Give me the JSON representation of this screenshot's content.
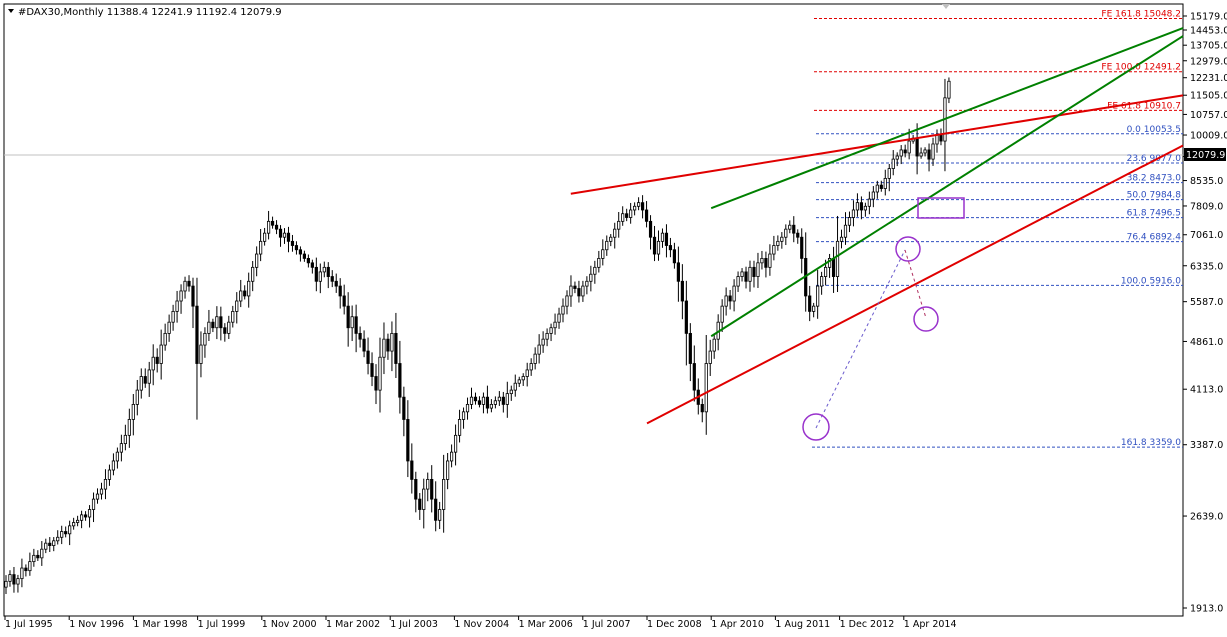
{
  "header": {
    "symbol_info": "#DAX30,Monthly  11388.4 12241.9 11192.4 12079.9"
  },
  "current_price_label": "12079.9",
  "colors": {
    "candle": "#000000",
    "green_line": "#008000",
    "red_line": "#e00000",
    "fib_blue": "#3050c0",
    "fe_red": "#e00000",
    "marker_purple": "#9932cc",
    "axis": "#000000"
  },
  "chart_data": {
    "type": "candlestick",
    "symbol": "#DAX30",
    "timeframe": "Monthly",
    "last_bar": {
      "open": 11388.4,
      "high": 12241.9,
      "low": 11192.4,
      "close": 12079.9
    },
    "y_ticks": [
      "15179.0",
      "14453.0",
      "13705.0",
      "12979.0",
      "12231.0",
      "11505.0",
      "10757.0",
      "10009.0",
      "9283.0",
      "8535.0",
      "7809.0",
      "7061.0",
      "6335.0",
      "5587.0",
      "4861.0",
      "4113.0",
      "3387.0",
      "2639.0",
      "1913.0"
    ],
    "x_ticks": [
      "1 Jul 1995",
      "1 Nov 1996",
      "1 Mar 1998",
      "1 Jul 1999",
      "1 Nov 2000",
      "1 Mar 2002",
      "1 Jul 2003",
      "1 Nov 2004",
      "1 Mar 2006",
      "1 Jul 2007",
      "1 Dec 2008",
      "1 Apr 2010",
      "1 Aug 2011",
      "1 Dec 2012",
      "1 Apr 2014"
    ],
    "ylim": [
      1913,
      15179
    ],
    "fib_retracement": [
      {
        "label": "0.0 10053.5",
        "value": 10053.5
      },
      {
        "label": "23.6 9077.0",
        "value": 9077.0
      },
      {
        "label": "38.2 8473.0",
        "value": 8473.0
      },
      {
        "label": "50.0 7984.8",
        "value": 7984.8
      },
      {
        "label": "61.8 7496.5",
        "value": 7496.5
      },
      {
        "label": "76.4 6892.4",
        "value": 6892.4
      },
      {
        "label": "100.0 5916.0",
        "value": 5916.0
      },
      {
        "label": "161.8 3359.0",
        "value": 3359.0
      }
    ],
    "fib_expansion": [
      {
        "label": "FE 161.8 15048.2",
        "value": 15048.2
      },
      {
        "label": "FE 100.0 12491.2",
        "value": 12491.2
      },
      {
        "label": "FE 61.8 10910.7",
        "value": 10910.7
      }
    ],
    "monthly_closes": [
      2100,
      2150,
      2080,
      2120,
      2200,
      2180,
      2250,
      2300,
      2280,
      2350,
      2400,
      2380,
      2420,
      2450,
      2500,
      2480,
      2550,
      2580,
      2600,
      2650,
      2630,
      2700,
      2800,
      2850,
      2900,
      3000,
      3100,
      3200,
      3300,
      3400,
      3500,
      3700,
      3900,
      4100,
      4300,
      4200,
      4400,
      4600,
      4500,
      4800,
      5000,
      5200,
      5400,
      5600,
      5800,
      6000,
      5900,
      5500,
      4500,
      4800,
      5000,
      5200,
      5100,
      5300,
      5100,
      5000,
      5200,
      5400,
      5600,
      5800,
      5700,
      6000,
      6300,
      6600,
      6900,
      7100,
      7400,
      7300,
      7200,
      7000,
      7100,
      6900,
      6800,
      6700,
      6600,
      6500,
      6400,
      6300,
      6000,
      6200,
      6300,
      6100,
      6000,
      5900,
      5700,
      5500,
      5100,
      5300,
      5000,
      4900,
      4700,
      4500,
      4300,
      4100,
      4600,
      4900,
      4700,
      5000,
      4500,
      4000,
      3700,
      3200,
      3000,
      2800,
      2700,
      2900,
      3000,
      2800,
      2600,
      2700,
      3000,
      3200,
      3300,
      3500,
      3700,
      3800,
      3900,
      4000,
      3950,
      3900,
      4000,
      3850,
      3900,
      3950,
      4000,
      3900,
      4050,
      4100,
      4200,
      4250,
      4300,
      4400,
      4500,
      4650,
      4800,
      4900,
      5000,
      5100,
      5200,
      5350,
      5500,
      5700,
      5900,
      5850,
      5700,
      5900,
      6000,
      6150,
      6300,
      6500,
      6700,
      6900,
      7000,
      7200,
      7400,
      7600,
      7500,
      7700,
      7800,
      7900,
      7700,
      7400,
      7000,
      6600,
      6900,
      7100,
      6800,
      6700,
      6400,
      6000,
      5600,
      5000,
      4500,
      4100,
      3900,
      3800,
      4500,
      4700,
      4900,
      5200,
      5500,
      5700,
      5600,
      5900,
      6100,
      6200,
      6000,
      6300,
      6100,
      6400,
      6500,
      6300,
      6600,
      6800,
      6900,
      7000,
      7200,
      7300,
      7100,
      7000,
      6500,
      5700,
      5400,
      5500,
      5900,
      6100,
      6300,
      6500,
      6100,
      6900,
      7000,
      7300,
      7500,
      7700,
      7900,
      7700,
      7800,
      8000,
      8200,
      8400,
      8300,
      8600,
      8900,
      9200,
      9300,
      9500,
      9400,
      9800,
      9900,
      9300,
      9400,
      9500,
      9200,
      9700,
      10000,
      9800,
      11400,
      12079.9
    ],
    "trendlines": [
      {
        "name": "red-upper",
        "color": "red",
        "from": {
          "x": "1 Jul 2007",
          "y": 8150
        },
        "to": {
          "x": "right-edge",
          "y": 11500
        }
      },
      {
        "name": "red-lower",
        "color": "red",
        "from": {
          "x": "1 Dec 2008",
          "y": 3650
        },
        "to": {
          "x": "right-edge",
          "y": 9650
        }
      },
      {
        "name": "green-upper",
        "color": "green",
        "from": {
          "x": "1 Apr 2010",
          "y": 7750
        },
        "to": {
          "x": "right-edge",
          "y": 14550
        }
      },
      {
        "name": "green-lower",
        "color": "green",
        "from": {
          "x": "1 Apr 2010",
          "y": 4950
        },
        "to": {
          "x": "right-edge",
          "y": 14150
        }
      }
    ]
  }
}
